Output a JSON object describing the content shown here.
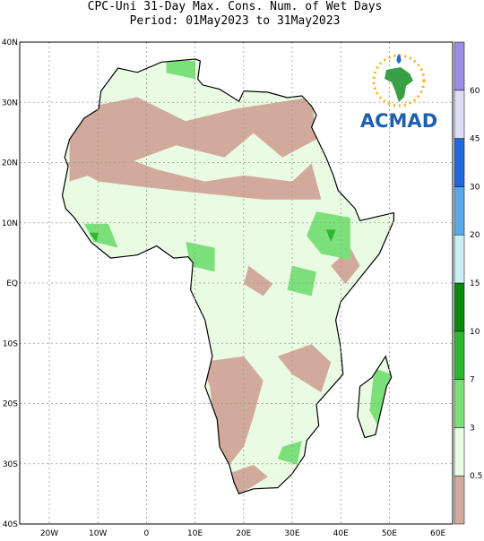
{
  "header": {
    "line1": "CPC-Uni 31-Day Max. Cons. Num. of Wet Days",
    "line2": "Period: 01May2023 to 31May2023"
  },
  "axes": {
    "lat_labels": [
      "40N",
      "30N",
      "20N",
      "10N",
      "EQ",
      "10S",
      "20S",
      "30S",
      "40S"
    ],
    "lon_labels": [
      "20W",
      "10W",
      "0",
      "10E",
      "20E",
      "30E",
      "40E",
      "50E",
      "60E"
    ]
  },
  "colorbar": {
    "levels": [
      0.5,
      3,
      7,
      10,
      15,
      20,
      30,
      45,
      60
    ],
    "colors": [
      "#d2aa9c",
      "#eafbe4",
      "#7ce07a",
      "#2fb52f",
      "#0a8a0a",
      "#c8eef6",
      "#58a8ea",
      "#2268dc",
      "#dcdcf4",
      "#9d8ce6"
    ]
  },
  "logo": {
    "text": "ACMAD"
  }
}
